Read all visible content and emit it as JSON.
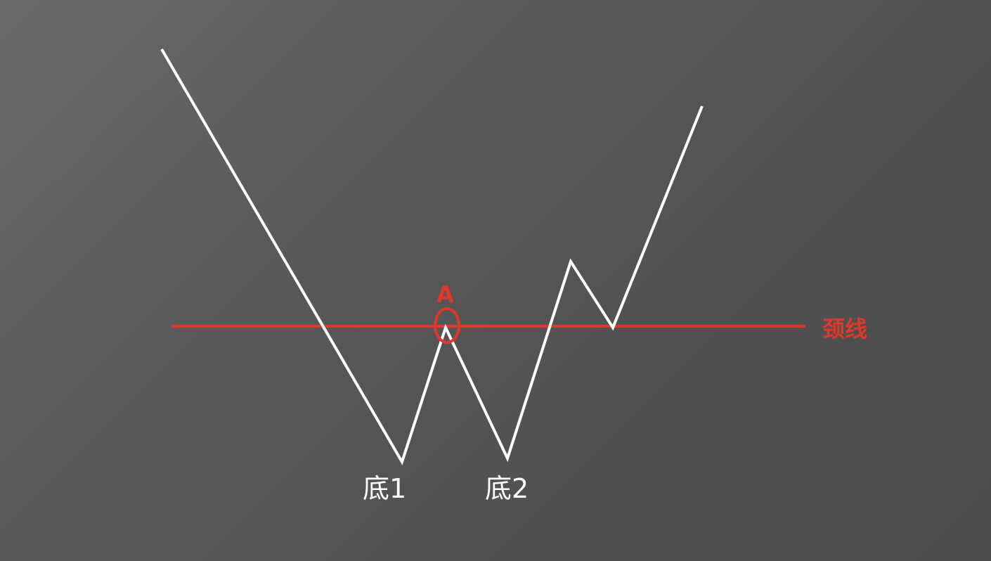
{
  "diagram": {
    "type": "double-bottom-pattern",
    "colors": {
      "price_line": "#ffffff",
      "neckline": "#e0392b",
      "marker": "#e0392b",
      "labels_accent": "#e0392b",
      "labels_default": "#ffffff"
    },
    "labels": {
      "point_a": "A",
      "neckline": "颈线",
      "bottom_1": "底1",
      "bottom_2": "底2"
    }
  }
}
